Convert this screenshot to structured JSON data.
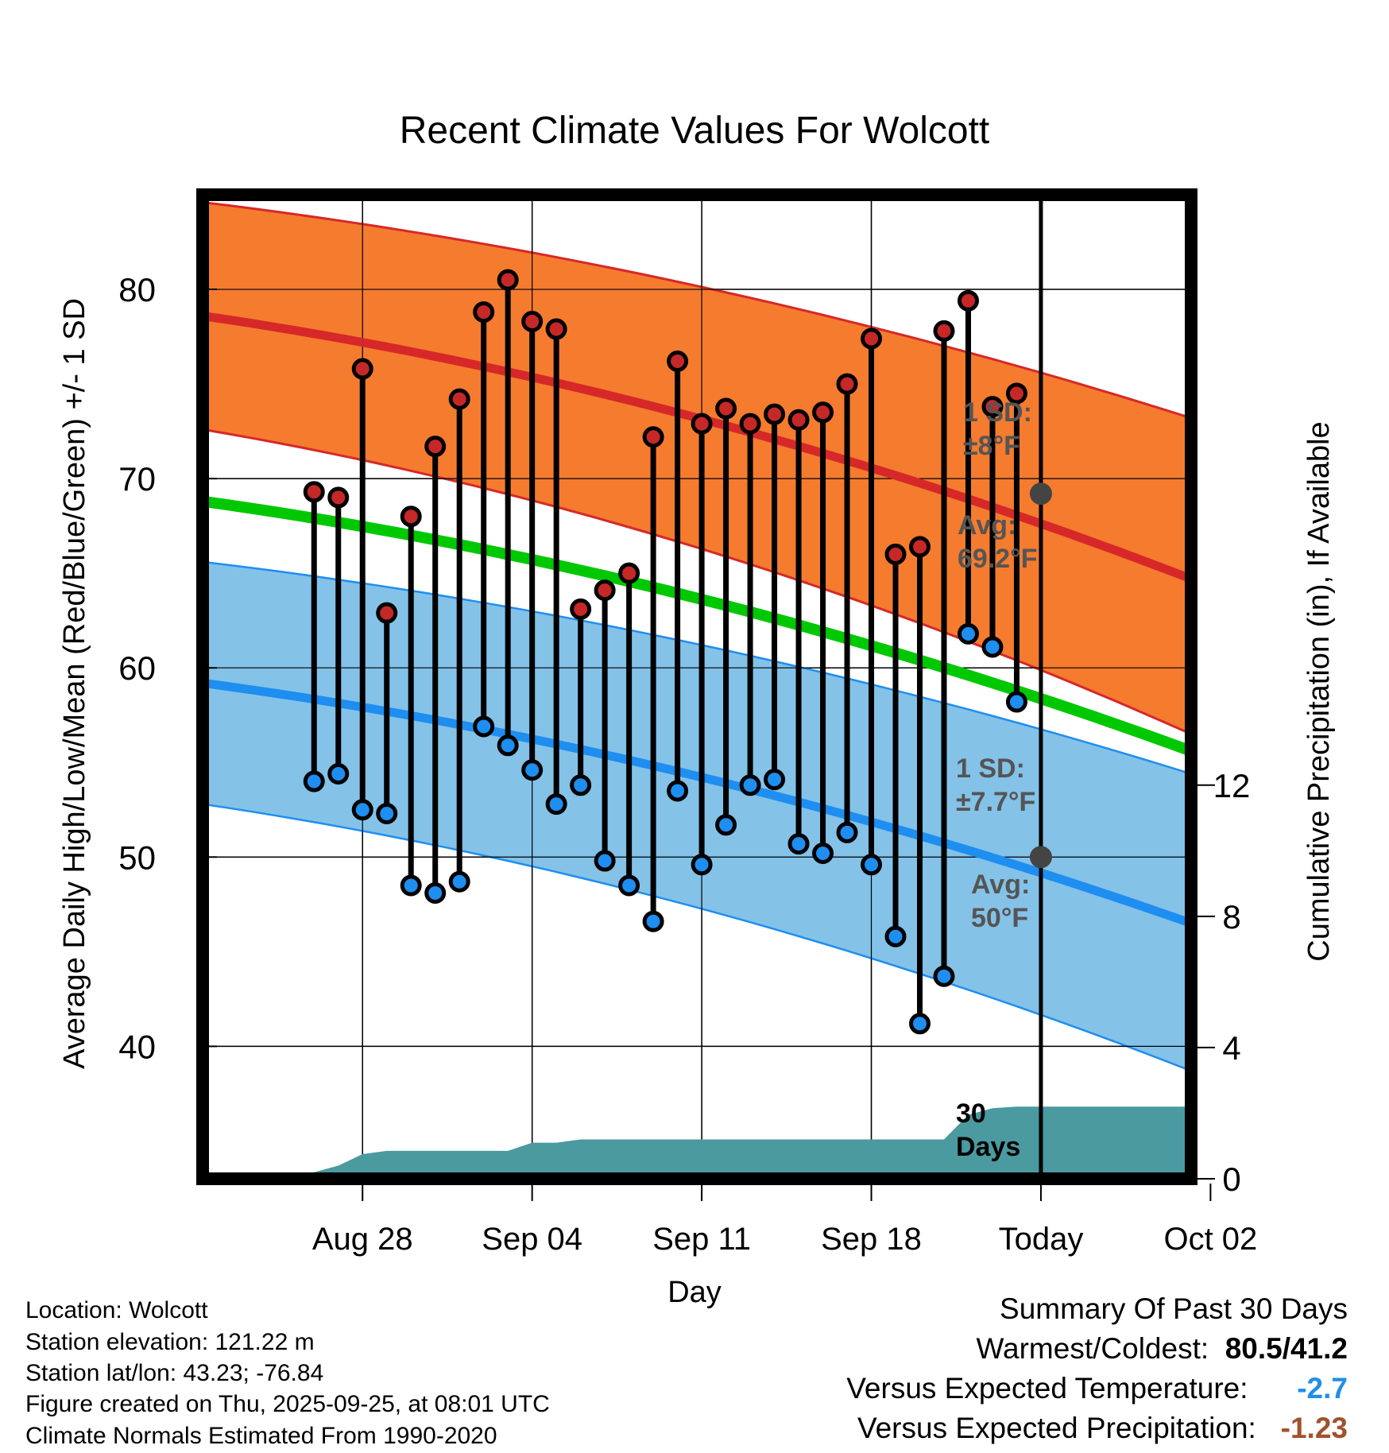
{
  "chart_data": {
    "type": "line",
    "title": "Recent Climate Values For Wolcott",
    "xlabel": "Day",
    "ylabel": "Average Daily High/Low/Mean (Red/Blue/Green) +/- 1 SD",
    "y2label": "Cumulative Precipitation (in), If Available",
    "ylim": [
      33,
      85
    ],
    "y2lim": [
      0,
      30
    ],
    "x_range_days": [
      -34.6,
      6.2
    ],
    "yticks": [
      40,
      50,
      60,
      70,
      80
    ],
    "y2ticks": [
      0,
      4,
      8,
      12
    ],
    "xticks": [
      {
        "day": -28,
        "label": "Aug 28"
      },
      {
        "day": -21,
        "label": "Sep 04"
      },
      {
        "day": -14,
        "label": "Sep 11"
      },
      {
        "day": -7,
        "label": "Sep 18"
      },
      {
        "day": 0,
        "label": "Today"
      },
      {
        "day": 7,
        "label": "Oct 02"
      }
    ],
    "normals": {
      "high_avg": {
        "start": 78.6,
        "end": 64.7
      },
      "high_upper": {
        "start": 84.6,
        "end": 73.2
      },
      "high_lower": {
        "start": 72.6,
        "end": 56.5
      },
      "mean_avg": {
        "start": 68.8,
        "end": 55.6
      },
      "low_avg": {
        "start": 59.2,
        "end": 46.5
      },
      "low_upper": {
        "start": 65.6,
        "end": 54.4
      },
      "low_lower": {
        "start": 52.8,
        "end": 38.7
      }
    },
    "daily_highs": [
      69.3,
      69.0,
      75.8,
      62.9,
      68.0,
      71.7,
      74.2,
      78.8,
      80.5,
      78.3,
      77.9,
      63.1,
      64.1,
      65.0,
      72.2,
      76.2,
      72.9,
      73.7,
      72.9,
      73.4,
      73.1,
      73.5,
      75.0,
      77.4,
      66.0,
      66.4,
      77.8,
      79.4,
      73.8,
      74.5
    ],
    "daily_lows": [
      54.0,
      54.4,
      52.5,
      52.3,
      48.5,
      48.1,
      48.7,
      56.9,
      55.9,
      54.6,
      52.8,
      53.8,
      49.8,
      48.5,
      46.6,
      53.5,
      49.6,
      51.7,
      53.8,
      54.1,
      50.7,
      50.2,
      51.3,
      49.6,
      45.8,
      41.2,
      43.7,
      61.8,
      61.1,
      58.2
    ],
    "first_day": -30,
    "precip_cumulative": [
      {
        "day": -30.6,
        "value": 0.0
      },
      {
        "day": -30,
        "value": 0.2
      },
      {
        "day": -29,
        "value": 0.4
      },
      {
        "day": -28,
        "value": 0.75
      },
      {
        "day": -27,
        "value": 0.85
      },
      {
        "day": -22,
        "value": 0.85
      },
      {
        "day": -21,
        "value": 1.1
      },
      {
        "day": -20,
        "value": 1.1
      },
      {
        "day": -19,
        "value": 1.2
      },
      {
        "day": -4,
        "value": 1.2
      },
      {
        "day": -3,
        "value": 1.95
      },
      {
        "day": -2,
        "value": 2.15
      },
      {
        "day": -1,
        "value": 2.2
      },
      {
        "day": 6.2,
        "value": 2.2
      }
    ],
    "annotations": {
      "high_sd_title": "1 SD:",
      "high_sd_value": "±8",
      "high_avg_title": "Avg:",
      "high_avg_value": "69.2",
      "high_avg_y": 69.2,
      "low_sd_title": "1 SD:",
      "low_sd_value": "±7.7",
      "low_avg_title": "Avg:",
      "low_avg_value": "50",
      "low_avg_y": 50,
      "degree_unit": "°F",
      "period_line1": "30",
      "period_line2": "Days"
    },
    "colors": {
      "high_band": "#f57b2f",
      "high_line": "#d62828",
      "mean_line": "#00c800",
      "low_band": "#84c2e8",
      "low_line": "#1e8ef0",
      "precip": "#4a9aa0",
      "high_dot": "#c62828",
      "low_dot": "#1e8ef0",
      "today_dot": "#444444"
    }
  },
  "info": {
    "location": "Location: Wolcott",
    "elevation": "Station elevation: 121.22 m",
    "latlon": "Station lat/lon: 43.23; -76.84",
    "created": "Figure created on Thu, 2025-09-25, at 08:01 UTC",
    "normals": "Climate Normals Estimated From 1990-2020"
  },
  "summary": {
    "title": "Summary Of Past 30 Days",
    "warm_label": "Warmest/Coldest:",
    "warm_value": "80.5/41.2",
    "temp_label": "Versus Expected Temperature:",
    "temp_value": "-2.7",
    "precip_label": "Versus Expected Precipitation:",
    "precip_value": "-1.23"
  }
}
